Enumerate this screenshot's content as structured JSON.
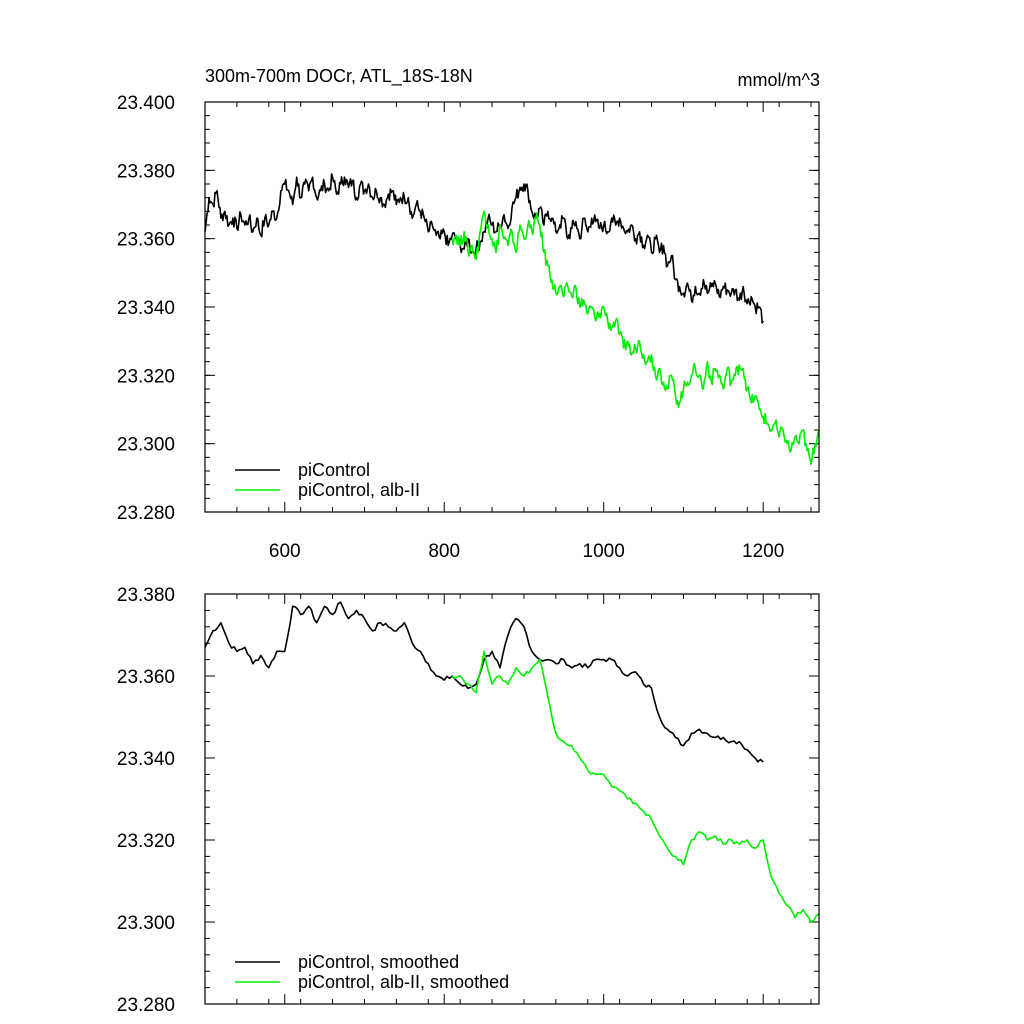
{
  "chart_data": [
    {
      "type": "line",
      "title": "300m-700m DOCr, ATL_18S-18N",
      "units": "mmol/m^3",
      "xlim": [
        500,
        1270
      ],
      "ylim": [
        23.28,
        23.4
      ],
      "x_ticks": [
        600,
        800,
        1000,
        1200
      ],
      "y_ticks": [
        "23.280",
        "23.300",
        "23.320",
        "23.340",
        "23.360",
        "23.380",
        "23.400"
      ],
      "grid": false,
      "legend": "bottom-left",
      "series": [
        {
          "name": "piControl",
          "color": "#000000",
          "x": [
            500,
            505,
            510,
            515,
            520,
            525,
            530,
            535,
            540,
            545,
            550,
            555,
            560,
            565,
            570,
            575,
            580,
            585,
            590,
            595,
            600,
            605,
            610,
            615,
            620,
            625,
            630,
            635,
            640,
            645,
            650,
            655,
            660,
            665,
            670,
            675,
            680,
            685,
            690,
            695,
            700,
            705,
            710,
            715,
            720,
            725,
            730,
            735,
            740,
            745,
            750,
            755,
            760,
            765,
            770,
            775,
            780,
            785,
            790,
            795,
            800,
            805,
            810,
            815,
            820,
            825,
            830,
            835,
            840,
            845,
            850,
            855,
            860,
            865,
            870,
            875,
            880,
            885,
            890,
            895,
            900,
            905,
            910,
            915,
            920,
            925,
            930,
            935,
            940,
            945,
            950,
            955,
            960,
            965,
            970,
            975,
            980,
            985,
            990,
            995,
            1000,
            1005,
            1010,
            1015,
            1020,
            1025,
            1030,
            1035,
            1040,
            1045,
            1050,
            1055,
            1060,
            1065,
            1070,
            1075,
            1080,
            1085,
            1090,
            1095,
            1100,
            1105,
            1110,
            1115,
            1120,
            1125,
            1130,
            1135,
            1140,
            1145,
            1150,
            1155,
            1160,
            1165,
            1170,
            1175,
            1180,
            1185,
            1190,
            1195,
            1200
          ],
          "values": [
            23.362,
            23.372,
            23.37,
            23.374,
            23.366,
            23.368,
            23.364,
            23.366,
            23.363,
            23.367,
            23.364,
            23.366,
            23.362,
            23.366,
            23.361,
            23.366,
            23.364,
            23.368,
            23.366,
            23.374,
            23.376,
            23.374,
            23.37,
            23.378,
            23.372,
            23.376,
            23.374,
            23.378,
            23.372,
            23.374,
            23.376,
            23.374,
            23.378,
            23.373,
            23.376,
            23.378,
            23.375,
            23.377,
            23.372,
            23.376,
            23.374,
            23.376,
            23.372,
            23.374,
            23.372,
            23.37,
            23.373,
            23.374,
            23.37,
            23.372,
            23.372,
            23.372,
            23.366,
            23.37,
            23.368,
            23.366,
            23.362,
            23.364,
            23.361,
            23.36,
            23.362,
            23.358,
            23.361,
            23.36,
            23.358,
            23.357,
            23.36,
            23.356,
            23.357,
            23.359,
            23.362,
            23.366,
            23.364,
            23.362,
            23.364,
            23.367,
            23.363,
            23.369,
            23.372,
            23.375,
            23.376,
            23.374,
            23.368,
            23.366,
            23.369,
            23.364,
            23.368,
            23.366,
            23.362,
            23.364,
            23.366,
            23.36,
            23.363,
            23.365,
            23.36,
            23.366,
            23.362,
            23.366,
            23.365,
            23.363,
            23.364,
            23.362,
            23.366,
            23.364,
            23.366,
            23.363,
            23.362,
            23.364,
            23.36,
            23.362,
            23.358,
            23.361,
            23.356,
            23.36,
            23.356,
            23.358,
            23.352,
            23.355,
            23.348,
            23.346,
            23.344,
            23.347,
            23.342,
            23.346,
            23.344,
            23.348,
            23.344,
            23.346,
            23.347,
            23.343,
            23.346,
            23.345,
            23.344,
            23.345,
            23.342,
            23.346,
            23.341,
            23.343,
            23.34,
            23.34,
            23.336
          ]
        },
        {
          "name": "piControl, alb-II",
          "color": "#00ee00",
          "x": [
            810,
            815,
            820,
            825,
            830,
            835,
            840,
            845,
            850,
            855,
            860,
            865,
            870,
            875,
            880,
            885,
            890,
            895,
            900,
            905,
            910,
            915,
            920,
            925,
            930,
            935,
            940,
            945,
            950,
            955,
            960,
            965,
            970,
            975,
            980,
            985,
            990,
            995,
            1000,
            1005,
            1010,
            1015,
            1020,
            1025,
            1030,
            1035,
            1040,
            1045,
            1050,
            1055,
            1060,
            1065,
            1070,
            1075,
            1080,
            1085,
            1090,
            1095,
            1100,
            1105,
            1110,
            1115,
            1120,
            1125,
            1130,
            1135,
            1140,
            1145,
            1150,
            1155,
            1160,
            1165,
            1170,
            1175,
            1180,
            1185,
            1190,
            1195,
            1200,
            1205,
            1210,
            1215,
            1220,
            1225,
            1230,
            1235,
            1240,
            1245,
            1250,
            1255,
            1260,
            1265,
            1270
          ],
          "values": [
            23.36,
            23.361,
            23.358,
            23.362,
            23.356,
            23.358,
            23.354,
            23.362,
            23.368,
            23.364,
            23.36,
            23.356,
            23.364,
            23.36,
            23.358,
            23.362,
            23.356,
            23.364,
            23.36,
            23.364,
            23.362,
            23.366,
            23.364,
            23.356,
            23.352,
            23.348,
            23.344,
            23.346,
            23.343,
            23.346,
            23.343,
            23.346,
            23.34,
            23.342,
            23.338,
            23.34,
            23.336,
            23.338,
            23.34,
            23.336,
            23.334,
            23.336,
            23.332,
            23.328,
            23.33,
            23.326,
            23.328,
            23.33,
            23.326,
            23.324,
            23.326,
            23.32,
            23.322,
            23.318,
            23.316,
            23.32,
            23.314,
            23.312,
            23.316,
            23.318,
            23.32,
            23.322,
            23.32,
            23.316,
            23.324,
            23.318,
            23.322,
            23.32,
            23.316,
            23.322,
            23.318,
            23.32,
            23.323,
            23.322,
            23.316,
            23.312,
            23.314,
            23.31,
            23.308,
            23.306,
            23.304,
            23.306,
            23.302,
            23.304,
            23.3,
            23.298,
            23.302,
            23.3,
            23.304,
            23.298,
            23.294,
            23.3,
            23.304
          ]
        }
      ]
    },
    {
      "type": "line",
      "xlim": [
        500,
        1270
      ],
      "ylim": [
        23.28,
        23.38
      ],
      "x_ticks": [
        600,
        800,
        1000,
        1200
      ],
      "y_ticks": [
        "23.280",
        "23.300",
        "23.320",
        "23.340",
        "23.360",
        "23.380"
      ],
      "grid": false,
      "legend": "bottom-left",
      "series": [
        {
          "name": "piControl, smoothed",
          "color": "#000000",
          "x": [
            500,
            510,
            520,
            530,
            540,
            550,
            560,
            570,
            580,
            590,
            600,
            610,
            620,
            630,
            640,
            650,
            660,
            670,
            680,
            690,
            700,
            710,
            720,
            730,
            740,
            750,
            760,
            770,
            780,
            790,
            800,
            810,
            820,
            830,
            840,
            850,
            860,
            870,
            880,
            890,
            900,
            910,
            920,
            930,
            940,
            950,
            960,
            970,
            980,
            990,
            1000,
            1010,
            1020,
            1030,
            1040,
            1050,
            1060,
            1070,
            1080,
            1090,
            1100,
            1110,
            1120,
            1130,
            1140,
            1150,
            1160,
            1170,
            1180,
            1190,
            1200
          ],
          "values": [
            23.367,
            23.371,
            23.373,
            23.368,
            23.366,
            23.367,
            23.363,
            23.365,
            23.362,
            23.366,
            23.366,
            23.377,
            23.375,
            23.377,
            23.373,
            23.377,
            23.375,
            23.378,
            23.374,
            23.376,
            23.374,
            23.371,
            23.373,
            23.372,
            23.371,
            23.373,
            23.368,
            23.366,
            23.363,
            23.36,
            23.359,
            23.36,
            23.358,
            23.357,
            23.358,
            23.364,
            23.366,
            23.362,
            23.37,
            23.374,
            23.372,
            23.366,
            23.364,
            23.364,
            23.363,
            23.364,
            23.362,
            23.363,
            23.362,
            23.364,
            23.364,
            23.364,
            23.362,
            23.36,
            23.361,
            23.358,
            23.357,
            23.35,
            23.347,
            23.345,
            23.343,
            23.346,
            23.347,
            23.346,
            23.345,
            23.345,
            23.344,
            23.344,
            23.342,
            23.34,
            23.339
          ]
        },
        {
          "name": "piControl, alb-II, smoothed",
          "color": "#00ee00",
          "x": [
            810,
            820,
            830,
            840,
            850,
            860,
            870,
            880,
            890,
            900,
            910,
            920,
            930,
            940,
            950,
            960,
            970,
            980,
            990,
            1000,
            1010,
            1020,
            1030,
            1040,
            1050,
            1060,
            1070,
            1080,
            1090,
            1100,
            1110,
            1120,
            1130,
            1140,
            1150,
            1160,
            1170,
            1180,
            1190,
            1200,
            1210,
            1220,
            1230,
            1240,
            1250,
            1260,
            1270
          ],
          "values": [
            23.36,
            23.36,
            23.358,
            23.356,
            23.366,
            23.358,
            23.36,
            23.358,
            23.362,
            23.36,
            23.362,
            23.364,
            23.355,
            23.346,
            23.344,
            23.343,
            23.34,
            23.337,
            23.336,
            23.336,
            23.333,
            23.332,
            23.33,
            23.329,
            23.327,
            23.325,
            23.321,
            23.318,
            23.316,
            23.314,
            23.32,
            23.322,
            23.32,
            23.321,
            23.319,
            23.32,
            23.319,
            23.32,
            23.318,
            23.32,
            23.311,
            23.307,
            23.304,
            23.301,
            23.303,
            23.3,
            23.302
          ]
        }
      ]
    }
  ]
}
